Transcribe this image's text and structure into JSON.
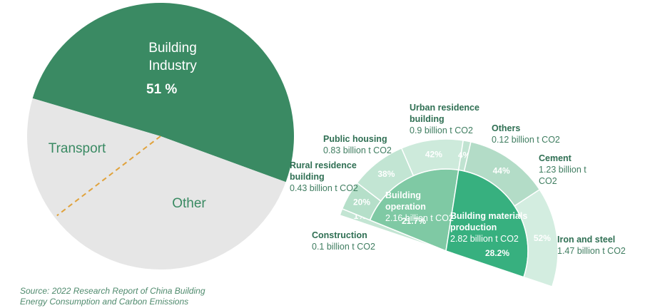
{
  "chart_data": [
    {
      "type": "pie",
      "categories": [
        "Building Industry",
        "Other",
        "Transport"
      ],
      "values": [
        51,
        34,
        15
      ],
      "value_labels": [
        "51 %",
        null,
        null
      ],
      "colors": [
        "#3a8a63",
        "#e6e6e6",
        "#e6e6e6"
      ],
      "divider_color": "#e0a23c"
    },
    {
      "type": "sunburst",
      "segments": [
        {
          "name": "Construction",
          "detail": "0.1 billion t CO2",
          "value": 1,
          "value_label": "1%",
          "color": "#c3e5d3",
          "children": []
        },
        {
          "name": "Building operation",
          "detail": "2.16 billion t CO2",
          "value": 21.7,
          "value_label": "21.7%",
          "color": "#7fc9a4",
          "children": [
            {
              "name": "Rural residence building",
              "detail": "0.43 billion t CO2",
              "value": 20,
              "value_label": "20%",
              "color": "#b5dfc9"
            },
            {
              "name": "Public housing",
              "detail": "0.83 billion t CO2",
              "value": 38,
              "value_label": "38%",
              "color": "#c2e5d3"
            },
            {
              "name": "Urban residence building",
              "detail": "0.9 billion t CO2",
              "value": 42,
              "value_label": "42%",
              "color": "#cdeadb"
            }
          ]
        },
        {
          "name": "Building materials production",
          "detail": "2.82 billion t CO2",
          "value": 28.2,
          "value_label": "28.2%",
          "color": "#37b07f",
          "children": [
            {
              "name": "Others",
              "detail": "0.12 billion t CO2",
              "value": 4,
              "value_label": "4%",
              "color": "#c0e3d1"
            },
            {
              "name": "Cement",
              "detail": "1.23 billion t CO2",
              "value": 44,
              "value_label": "44%",
              "color": "#b3dcc7"
            },
            {
              "name": "Iron and steel",
              "detail": "1.47 billion t CO2",
              "value": 52,
              "value_label": "52%",
              "color": "#d3ede0"
            }
          ]
        }
      ]
    }
  ],
  "source": "Source: 2022 Research Report of China Building Energy Consumption and Carbon Emissions"
}
